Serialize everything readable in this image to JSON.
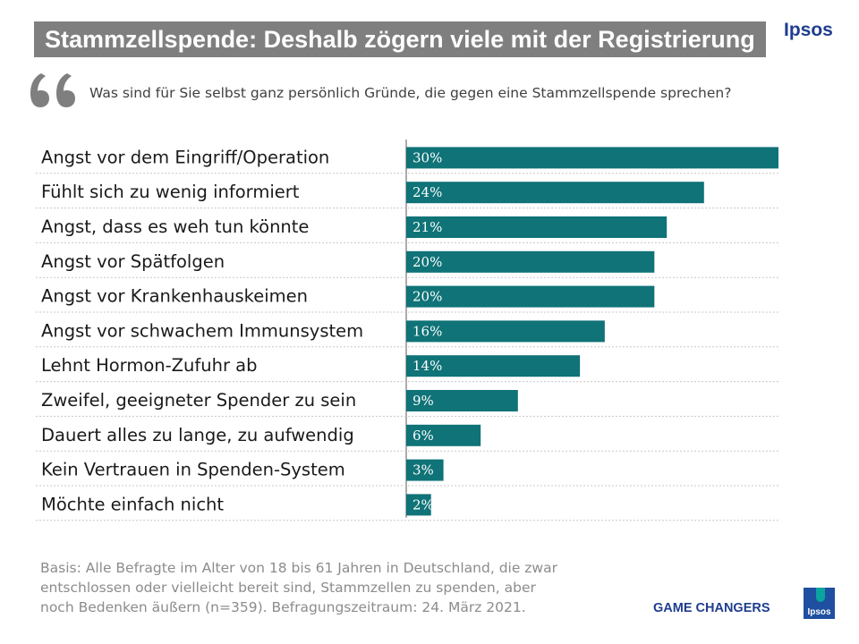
{
  "header": {
    "title": "Stammzellspende: Deshalb zögern viele mit der Registrierung",
    "brand": "Ipsos"
  },
  "question": "Was sind für Sie selbst ganz persönlich Gründe, die gegen eine Stammzellspende sprechen?",
  "chart_data": {
    "type": "bar",
    "orientation": "horizontal",
    "title": "",
    "categories": [
      "Angst vor dem Eingriff/Operation",
      "Fühlt sich zu wenig informiert",
      "Angst, dass es weh tun könnte",
      "Angst vor Spätfolgen",
      "Angst vor Krankenhauskeimen",
      "Angst vor schwachem Immunsystem",
      "Lehnt Hormon-Zufuhr ab",
      "Zweifel, geeigneter Spender zu sein",
      "Dauert alles zu lange, zu aufwendig",
      "Kein Vertrauen in Spenden-System",
      "Möchte einfach nicht"
    ],
    "values": [
      30,
      24,
      21,
      20,
      20,
      16,
      14,
      9,
      6,
      3,
      2
    ],
    "labels": [
      "30%",
      "24%",
      "21%",
      "20%",
      "20%",
      "16%",
      "14%",
      "9%",
      "6%",
      "3%",
      "2%"
    ],
    "xlim": [
      0,
      30
    ],
    "unit": "%",
    "bar_color": "#0f7377"
  },
  "footnote": {
    "lines": [
      "Basis: Alle Befragte im Alter von 18 bis 61 Jahren in Deutschland, die zwar",
      "entschlossen oder vielleicht bereit sind, Stammzellen zu spenden, aber",
      "noch Bedenken äußern (n=359). Befragungszeitraum: 24. März 2021."
    ]
  },
  "footer": {
    "tagline": "GAME CHANGERS",
    "logo_text": "Ipsos"
  }
}
